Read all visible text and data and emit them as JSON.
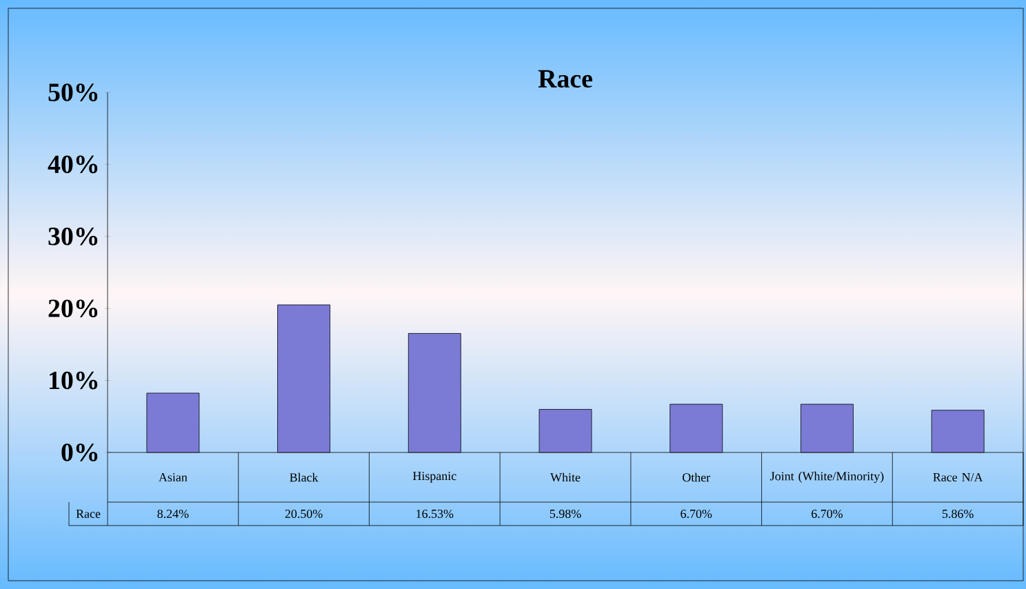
{
  "chart_data": {
    "type": "bar",
    "title": "Race",
    "categories": [
      "Asian",
      "Black",
      "Hispanic",
      "White",
      "Other",
      "Joint (White/Minority)",
      "Race N/A"
    ],
    "series": [
      {
        "name": "Race",
        "color": "#7b7bd6",
        "values": [
          8.24,
          20.5,
          16.53,
          5.98,
          6.7,
          6.7,
          5.86
        ],
        "value_labels": [
          "8.24%",
          "20.50%",
          "16.53%",
          "5.98%",
          "6.70%",
          "6.70%",
          "5.86%"
        ]
      }
    ],
    "ylim": [
      0,
      50
    ],
    "yticks": [
      {
        "value": 0,
        "label": "0%"
      },
      {
        "value": 10,
        "label": "10%"
      },
      {
        "value": 20,
        "label": "20%"
      },
      {
        "value": 30,
        "label": "30%"
      },
      {
        "value": 40,
        "label": "40%"
      },
      {
        "value": 50,
        "label": "50%"
      }
    ],
    "grid": false,
    "legend": "bottom left"
  }
}
